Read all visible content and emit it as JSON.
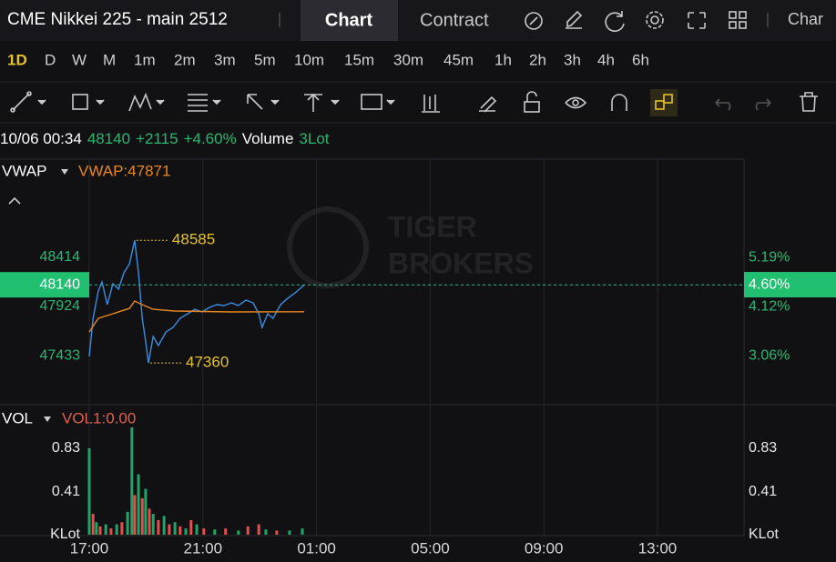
{
  "header": {
    "title": "CME Nikkei 225 - main 2512",
    "tabs": [
      "Chart",
      "Contract",
      "Char"
    ]
  },
  "timeframes": [
    "1D",
    "D",
    "W",
    "M",
    "1m",
    "2m",
    "3m",
    "5m",
    "10m",
    "15m",
    "30m",
    "45m",
    "1h",
    "2h",
    "3h",
    "4h",
    "6h"
  ],
  "quote": {
    "time": "10/06 00:34",
    "price": 48140,
    "change": "+2115",
    "change_pct": "+4.60%",
    "volume_label": "Volume",
    "volume": "3Lot"
  },
  "price_chart": {
    "indicator": "VWAP",
    "indicator_value": "VWAP:47871",
    "watermark": [
      "TIGER",
      "BROKERS"
    ],
    "ylim": [
      46943,
      49395
    ],
    "yticks": [
      48414,
      47924,
      47433
    ],
    "y2lim": [
      2.0,
      7.32
    ],
    "y2ticks": [
      {
        "value": 5.19,
        "label": "5.19%"
      },
      {
        "value": 4.12,
        "label": "4.12%"
      },
      {
        "value": 3.06,
        "label": "3.06%"
      }
    ],
    "current_pct": {
      "value": 4.6,
      "label": "4.60%"
    },
    "high": 48585,
    "low": 47360,
    "series": [
      {
        "name": "price",
        "color": "#3b8de0",
        "x": [
          "17:00",
          "17:08",
          "17:19",
          "17:27",
          "17:38",
          "17:50",
          "18:02",
          "18:13",
          "18:25",
          "18:36",
          "18:44",
          "18:52",
          "18:59",
          "19:05",
          "19:15",
          "19:26",
          "19:42",
          "19:57",
          "20:12",
          "20:28",
          "20:43",
          "20:58",
          "21:14",
          "21:29",
          "21:45",
          "22:00",
          "22:15",
          "22:31",
          "22:46",
          "22:58",
          "23:05",
          "23:17",
          "23:28",
          "23:44",
          "23:59",
          "00:15",
          "00:26",
          "00:34"
        ],
        "values": [
          47424,
          47806,
          48078,
          48169,
          47942,
          48151,
          48096,
          48260,
          48350,
          48585,
          48260,
          47806,
          47578,
          47360,
          47624,
          47533,
          47669,
          47715,
          47806,
          47851,
          47896,
          47869,
          47915,
          47942,
          47933,
          47960,
          47933,
          47987,
          47960,
          47851,
          47715,
          47851,
          47806,
          47942,
          48005,
          48060,
          48105,
          48140
        ]
      },
      {
        "name": "VWAP",
        "color": "#e8871e",
        "x": [
          "17:00",
          "17:19",
          "17:50",
          "18:25",
          "18:36",
          "18:52",
          "19:15",
          "20:00",
          "22:00",
          "00:34"
        ],
        "values": [
          47669,
          47805,
          47851,
          47905,
          47978,
          47942,
          47896,
          47878,
          47869,
          47871
        ]
      }
    ]
  },
  "volume_chart": {
    "indicator": "VOL",
    "indicator_value": "VOL1:0.00",
    "ylim": [
      0,
      1.23
    ],
    "yticks": [
      {
        "value": 0,
        "label": "KLot"
      },
      0.41,
      0.83
    ],
    "x": [
      "17:00",
      "17:08",
      "17:15",
      "17:23",
      "17:35",
      "17:46",
      "17:58",
      "18:09",
      "18:21",
      "18:30",
      "18:36",
      "18:44",
      "18:52",
      "18:59",
      "19:07",
      "19:15",
      "19:26",
      "19:38",
      "19:49",
      "20:01",
      "20:12",
      "20:24",
      "20:35",
      "20:47",
      "21:02",
      "21:25",
      "21:48",
      "22:15",
      "22:35",
      "22:58",
      "23:13",
      "23:36",
      "00:03",
      "00:30"
    ],
    "values": [
      0.83,
      0.2,
      0.12,
      0.08,
      0.1,
      0.06,
      0.1,
      0.12,
      0.22,
      1.03,
      0.38,
      0.58,
      0.35,
      0.44,
      0.25,
      0.2,
      0.14,
      0.18,
      0.1,
      0.12,
      0.08,
      0.06,
      0.14,
      0.1,
      0.06,
      0.05,
      0.06,
      0.04,
      0.08,
      0.1,
      0.05,
      0.04,
      0.04,
      0.06
    ],
    "colors": [
      "#1fa565",
      "#e0504f",
      "#1fa565",
      "#e0504f",
      "#1fa565",
      "#e0504f",
      "#1fa565",
      "#e0504f",
      "#1fa565",
      "#1fa565",
      "#e0504f",
      "#1fa565",
      "#e0504f",
      "#1fa565",
      "#e0504f",
      "#1fa565",
      "#e0504f",
      "#1fa565",
      "#e0504f",
      "#1fa565",
      "#e0504f",
      "#1fa565",
      "#e0504f",
      "#1fa565",
      "#e0504f",
      "#1fa565",
      "#e0504f",
      "#1fa565",
      "#e0504f",
      "#e0504f",
      "#1fa565",
      "#e0504f",
      "#1fa565",
      "#1fa565"
    ]
  },
  "time_axis": {
    "ticks": [
      "17:00",
      "21:00",
      "01:00",
      "05:00",
      "09:00",
      "13:00"
    ]
  }
}
